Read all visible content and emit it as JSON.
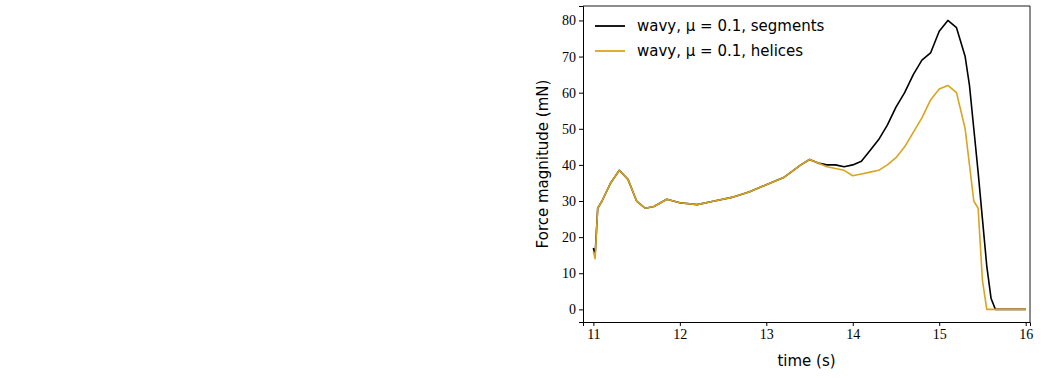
{
  "chart_data": {
    "type": "line",
    "x_label": "time (s)",
    "y_label": "Force magnitude (mN)",
    "x": [
      11.0,
      11.02,
      11.05,
      11.1,
      11.2,
      11.3,
      11.4,
      11.5,
      11.6,
      11.7,
      11.85,
      12.0,
      12.2,
      12.4,
      12.6,
      12.8,
      13.0,
      13.2,
      13.4,
      13.5,
      13.6,
      13.7,
      13.8,
      13.9,
      14.0,
      14.1,
      14.2,
      14.3,
      14.4,
      14.5,
      14.6,
      14.7,
      14.8,
      14.9,
      15.0,
      15.1,
      15.2,
      15.3,
      15.35,
      15.4,
      15.45,
      15.5,
      15.55,
      15.6,
      15.65,
      15.8,
      16.0
    ],
    "series": [
      {
        "name": "wavy, μ = 0.1, segments",
        "color": "#000000",
        "values": [
          17,
          15,
          28,
          30,
          35,
          38.5,
          36,
          30,
          28,
          28.5,
          30.5,
          29.5,
          29,
          30,
          31,
          32.5,
          34.5,
          36.5,
          40,
          41.5,
          40.5,
          40,
          40,
          39.5,
          40,
          41,
          44,
          47,
          51,
          56,
          60,
          65,
          69,
          71,
          77,
          80,
          78,
          70,
          62,
          50,
          38,
          25,
          12,
          3,
          0,
          0,
          0
        ]
      },
      {
        "name": "wavy, μ = 0.1, helices",
        "color": "#d9a520",
        "values": [
          16,
          14,
          28,
          30,
          35,
          38.5,
          36,
          30,
          28,
          28.5,
          30.5,
          29.5,
          29,
          30,
          31,
          32.5,
          34.5,
          36.5,
          40,
          41.5,
          40.5,
          39.5,
          39,
          38.5,
          37,
          37.5,
          38,
          38.5,
          40,
          42,
          45,
          49,
          53,
          58,
          61,
          62,
          60,
          50,
          40,
          30,
          28,
          8,
          0,
          0,
          0,
          0,
          0
        ]
      }
    ],
    "xlim": [
      10.88,
      16.05
    ],
    "ylim": [
      -3.5,
      84
    ],
    "xticks": [
      11,
      12,
      13,
      14,
      15,
      16
    ],
    "yticks": [
      0,
      10,
      20,
      30,
      40,
      50,
      60,
      70,
      80
    ],
    "grid": false,
    "legend": "upper left"
  }
}
